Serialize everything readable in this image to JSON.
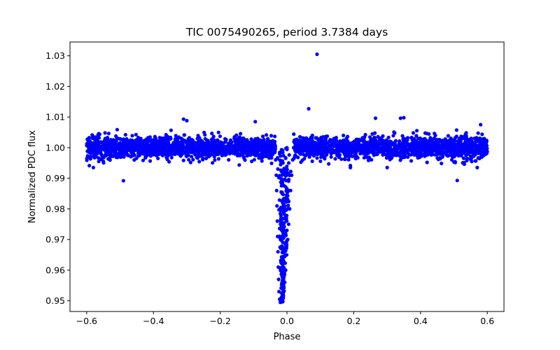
{
  "chart_data": {
    "type": "scatter",
    "title": "TIC 0075490265, period 3.7384 days",
    "xlabel": "Phase",
    "ylabel": "Normalized PDC flux",
    "xlim": [
      -0.65,
      0.65
    ],
    "ylim": [
      0.9465,
      1.0345
    ],
    "x_ticks": [
      -0.6,
      -0.4,
      -0.2,
      0.0,
      0.2,
      0.4,
      0.6
    ],
    "x_tick_labels": [
      "−0.6",
      "−0.4",
      "−0.2",
      "0.0",
      "0.2",
      "0.4",
      "0.6"
    ],
    "y_ticks": [
      0.95,
      0.96,
      0.97,
      0.98,
      0.99,
      1.0,
      1.01,
      1.02,
      1.03
    ],
    "y_tick_labels": [
      "0.95",
      "0.96",
      "0.97",
      "0.98",
      "0.99",
      "1.00",
      "1.01",
      "1.02",
      "1.03"
    ],
    "grid": false,
    "marker_color": "#0000ff",
    "series": [
      {
        "description_of_distribution": "out-of-transit baseline points",
        "x_range": [
          -0.6,
          0.6
        ],
        "baseline": 1.0,
        "typical_scatter": 0.003,
        "transit": {
          "center_phase": -0.005,
          "ingress_phase": -0.035,
          "egress_phase": 0.02,
          "min_flux": 0.9495
        },
        "outliers": [
          {
            "x": 0.09,
            "y": 1.0305
          },
          {
            "x": 0.065,
            "y": 1.0127
          },
          {
            "x": 0.35,
            "y": 1.0098
          },
          {
            "x": 0.34,
            "y": 1.0096
          },
          {
            "x": -0.31,
            "y": 1.0093
          },
          {
            "x": -0.3,
            "y": 1.0088
          },
          {
            "x": 0.265,
            "y": 1.0096
          },
          {
            "x": -0.095,
            "y": 1.0085
          },
          {
            "x": 0.58,
            "y": 1.0075
          },
          {
            "x": -0.49,
            "y": 0.9892
          },
          {
            "x": 0.51,
            "y": 0.9893
          },
          {
            "x": -0.58,
            "y": 0.9935
          },
          {
            "x": 0.19,
            "y": 0.9935
          },
          {
            "x": 0.3,
            "y": 0.9935
          },
          {
            "x": 0.57,
            "y": 0.9935
          }
        ],
        "transit_points": [
          {
            "x": -0.037,
            "y": 0.9985
          },
          {
            "x": -0.034,
            "y": 0.996
          },
          {
            "x": -0.032,
            "y": 0.991
          },
          {
            "x": -0.031,
            "y": 0.986
          },
          {
            "x": -0.03,
            "y": 0.981
          },
          {
            "x": -0.029,
            "y": 0.976
          },
          {
            "x": -0.028,
            "y": 0.971
          },
          {
            "x": -0.027,
            "y": 0.966
          },
          {
            "x": -0.026,
            "y": 0.961
          },
          {
            "x": -0.025,
            "y": 0.957
          },
          {
            "x": -0.024,
            "y": 0.953
          },
          {
            "x": -0.022,
            "y": 0.9505
          },
          {
            "x": -0.02,
            "y": 0.9495
          },
          {
            "x": -0.017,
            "y": 0.951
          },
          {
            "x": -0.013,
            "y": 0.9515
          },
          {
            "x": -0.01,
            "y": 0.953
          },
          {
            "x": -0.007,
            "y": 0.956
          },
          {
            "x": -0.004,
            "y": 0.96
          },
          {
            "x": -0.001,
            "y": 0.965
          },
          {
            "x": 0.002,
            "y": 0.97
          },
          {
            "x": 0.005,
            "y": 0.975
          },
          {
            "x": 0.008,
            "y": 0.98
          },
          {
            "x": 0.011,
            "y": 0.986
          },
          {
            "x": 0.014,
            "y": 0.991
          },
          {
            "x": 0.017,
            "y": 0.996
          },
          {
            "x": 0.02,
            "y": 1.0
          }
        ]
      }
    ]
  }
}
